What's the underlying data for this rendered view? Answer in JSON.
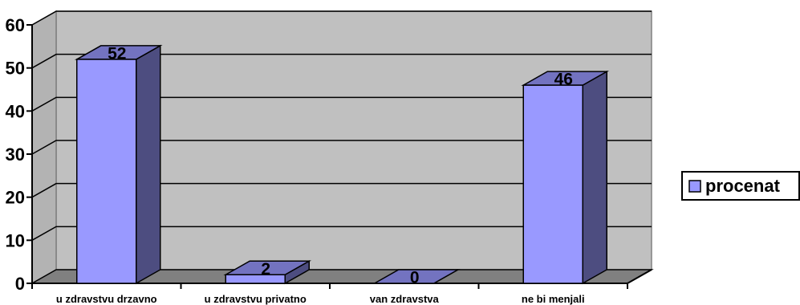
{
  "chart_data": {
    "type": "bar",
    "categories": [
      "u zdravstvu drzavno",
      "u zdravstvu privatno",
      "van zdravstva",
      "ne bi menjali"
    ],
    "series": [
      {
        "name": "procenat",
        "values": [
          52,
          2,
          0,
          46
        ]
      }
    ],
    "ylim": [
      0,
      60
    ],
    "yticks": [
      0,
      10,
      20,
      30,
      40,
      50,
      60
    ],
    "grid": true,
    "legend": "right",
    "three_d": true,
    "colors": {
      "bar_front": "#9999ff",
      "bar_side": "#4d4d80",
      "bar_top": "#7373c0",
      "wall": "#c0c0c0",
      "floor": "#808080",
      "gridline": "#000000"
    }
  }
}
